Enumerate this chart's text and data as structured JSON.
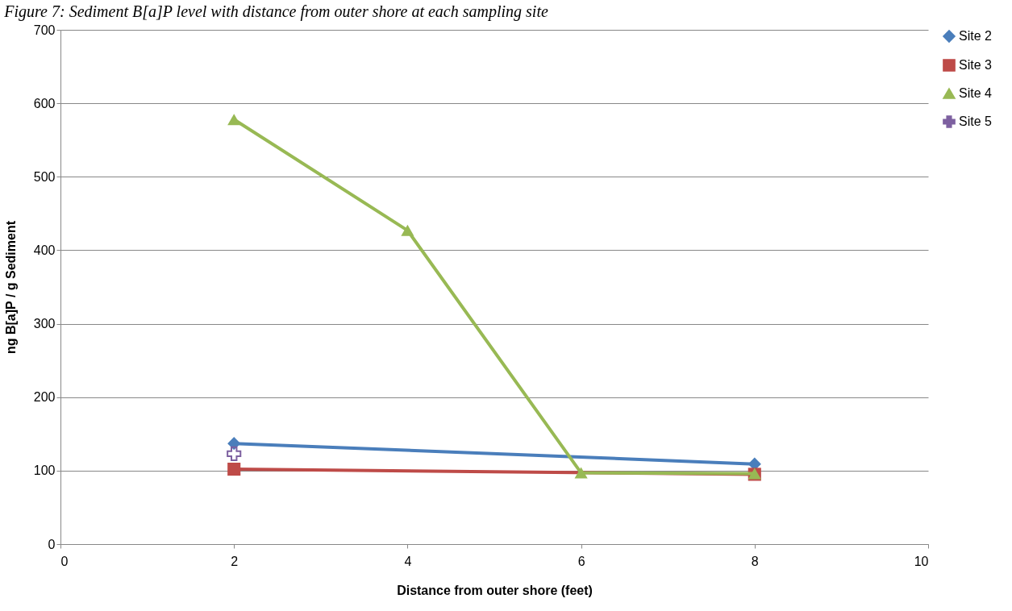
{
  "chart_data": {
    "type": "line",
    "title": "Figure 7: Sediment B[a]P level with distance from outer shore at each sampling site",
    "xlabel": "Distance from outer shore (feet)",
    "ylabel": "ng B[a]P / g Sediment",
    "xlim": [
      0,
      10
    ],
    "xticks": [
      0,
      2,
      4,
      6,
      8,
      10
    ],
    "ylim": [
      0,
      700
    ],
    "yticks": [
      0,
      100,
      200,
      300,
      400,
      500,
      600,
      700
    ],
    "grid": "y",
    "legend": "right",
    "series": [
      {
        "name": "Site 2",
        "color": "#4a7ebb",
        "marker": "diamond",
        "x": [
          2,
          8
        ],
        "values": [
          137,
          109
        ]
      },
      {
        "name": "Site 3",
        "color": "#be4b48",
        "marker": "square",
        "x": [
          2,
          8
        ],
        "values": [
          102,
          95
        ]
      },
      {
        "name": "Site 4",
        "color": "#98b954",
        "marker": "triangle",
        "x": [
          2,
          4,
          6,
          8
        ],
        "values": [
          578,
          427,
          97,
          96
        ]
      },
      {
        "name": "Site 5",
        "color": "#7d60a0",
        "marker": "cross",
        "x": [
          2
        ],
        "values": [
          123
        ]
      }
    ]
  }
}
